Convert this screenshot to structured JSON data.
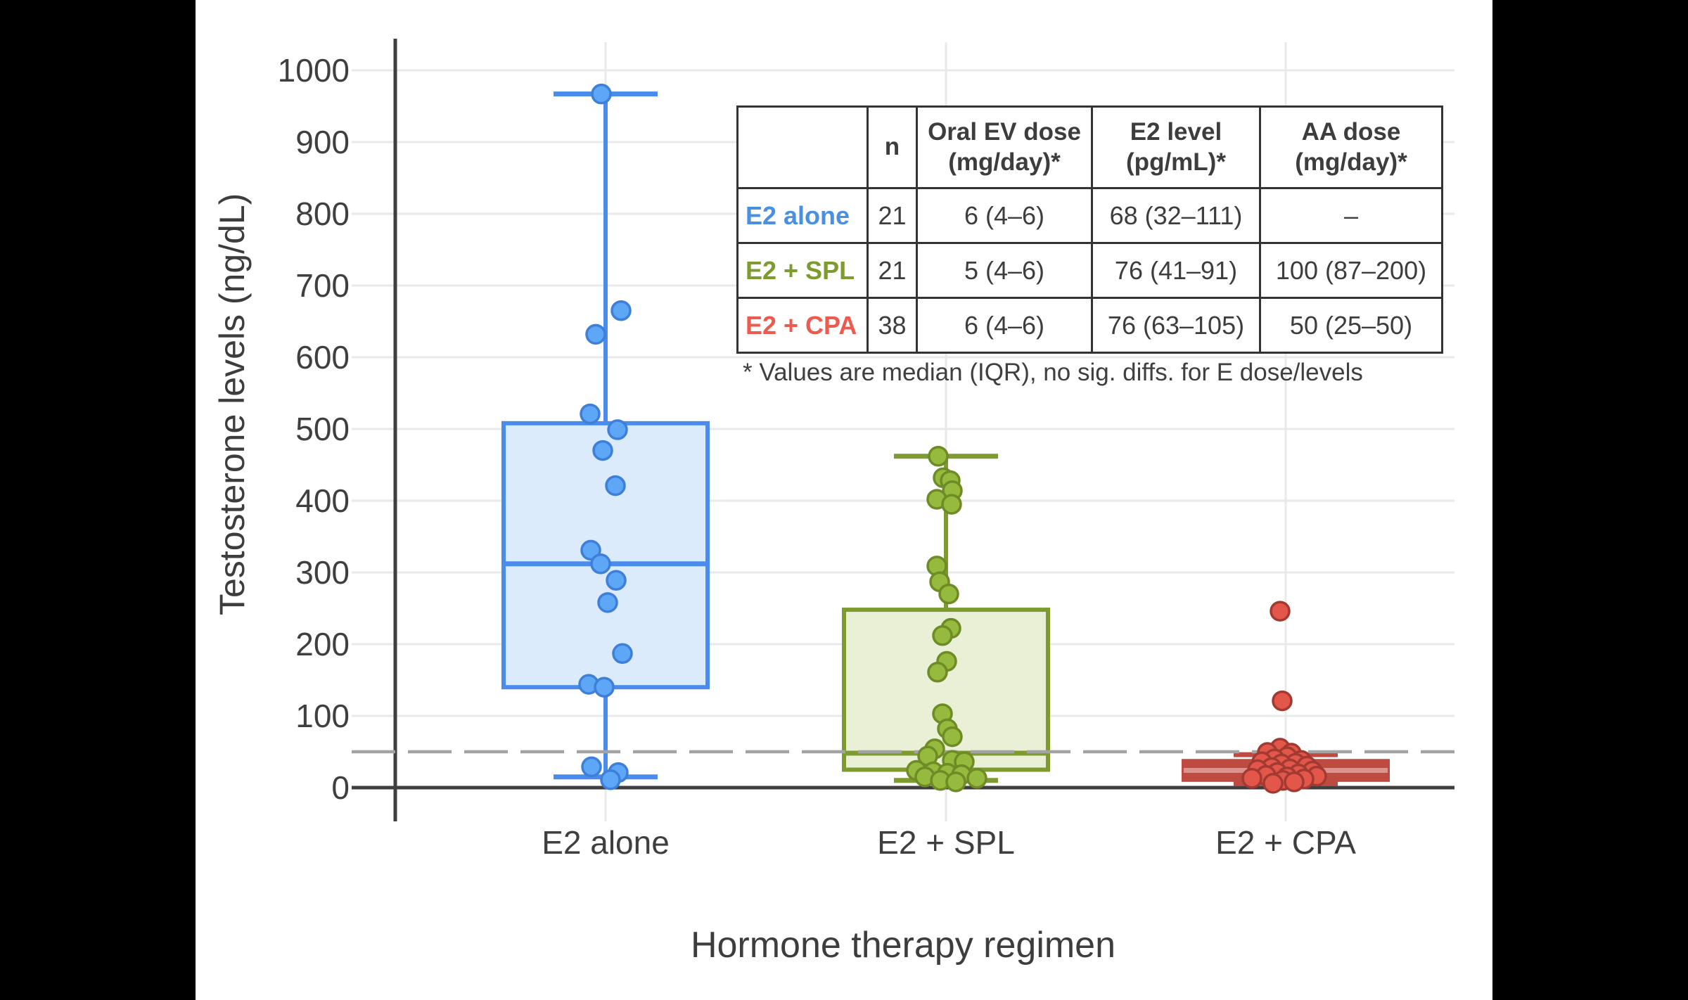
{
  "figure": {
    "x_axis_title": "Hormone therapy regimen",
    "y_axis_title": "Testosterone levels (ng/dL)"
  },
  "colors": {
    "blue": {
      "label": "#4a90e2",
      "stroke": "#4a8cee",
      "fill": "#dcebfb",
      "point": "#5ea6f6",
      "point_stroke": "#3d7fd9",
      "median": "#4a8cee"
    },
    "green": {
      "label": "#7d9b2f",
      "stroke": "#7d9b31",
      "fill": "#eaf0d6",
      "point": "#96ba3e",
      "point_stroke": "#6e8b26",
      "median": "#7d9b31"
    },
    "red": {
      "label": "#ef5a4e",
      "stroke": "#bf4a40",
      "fill": "#bf4a40",
      "point": "#e2574a",
      "point_stroke": "#a23a31",
      "median": "#dd938b"
    },
    "grid": "#e9e9e9",
    "axis": "#3f3f3f",
    "text": "#3d3d3d",
    "dashed_line": "#a3a3a3",
    "table_border": "#333333",
    "background": "#ffffff",
    "letterbox": "#000000"
  },
  "chart_data": {
    "type": "boxplot",
    "xlabel": "Hormone therapy regimen",
    "ylabel": "Testosterone levels (ng/dL)",
    "ylim": [
      0,
      1050
    ],
    "y_ticks": [
      0,
      100,
      200,
      300,
      400,
      500,
      600,
      700,
      800,
      900,
      1000
    ],
    "grid": true,
    "reference_line": {
      "value": 50,
      "style": "dashed"
    },
    "groups": [
      {
        "label": "E2 alone",
        "color_key": "blue",
        "box": {
          "whisker_low": 15,
          "q1": 140,
          "median": 312,
          "q3": 508,
          "whisker_high": 967
        },
        "points": [
          [
            967,
            -6
          ],
          [
            665,
            22
          ],
          [
            632,
            -14
          ],
          [
            521,
            -22
          ],
          [
            499,
            17
          ],
          [
            470,
            -4
          ],
          [
            421,
            14
          ],
          [
            331,
            -21
          ],
          [
            312,
            -7
          ],
          [
            289,
            15
          ],
          [
            258,
            3
          ],
          [
            187,
            24
          ],
          [
            144,
            -24
          ],
          [
            140,
            -2
          ],
          [
            29,
            -20
          ],
          [
            21,
            18
          ],
          [
            11,
            7
          ]
        ]
      },
      {
        "label": "E2 + SPL",
        "color_key": "green",
        "box": {
          "whisker_low": 10,
          "q1": 25,
          "median": 48,
          "q3": 248,
          "whisker_high": 462
        },
        "points": [
          [
            462,
            -11
          ],
          [
            432,
            -4
          ],
          [
            428,
            6
          ],
          [
            414,
            9
          ],
          [
            402,
            -13
          ],
          [
            395,
            8
          ],
          [
            309,
            -13
          ],
          [
            287,
            -9
          ],
          [
            270,
            4
          ],
          [
            222,
            7
          ],
          [
            212,
            -5
          ],
          [
            176,
            1
          ],
          [
            161,
            -12
          ],
          [
            103,
            -5
          ],
          [
            82,
            2
          ],
          [
            71,
            9
          ],
          [
            54,
            -16
          ],
          [
            44,
            -26
          ],
          [
            38,
            9
          ],
          [
            36,
            26
          ],
          [
            24,
            -42
          ],
          [
            22,
            -18
          ],
          [
            20,
            2
          ],
          [
            18,
            22
          ],
          [
            15,
            -30
          ],
          [
            13,
            44
          ],
          [
            10,
            -8
          ],
          [
            8,
            14
          ]
        ]
      },
      {
        "label": "E2 + CPA",
        "color_key": "red",
        "box": {
          "whisker_low": 6,
          "q1": 11,
          "median": 24,
          "q3": 37,
          "whisker_high": 46
        },
        "points": [
          [
            246,
            -8
          ],
          [
            121,
            -5
          ],
          [
            55,
            -8
          ],
          [
            49,
            -26
          ],
          [
            48,
            8
          ],
          [
            43,
            2
          ],
          [
            40,
            -16
          ],
          [
            38,
            22
          ],
          [
            36,
            -34
          ],
          [
            34,
            14
          ],
          [
            33,
            -6
          ],
          [
            30,
            30
          ],
          [
            28,
            -20
          ],
          [
            26,
            6
          ],
          [
            25,
            -40
          ],
          [
            23,
            38
          ],
          [
            21,
            -12
          ],
          [
            19,
            18
          ],
          [
            17,
            -28
          ],
          [
            16,
            44
          ],
          [
            15,
            2
          ],
          [
            13,
            -48
          ],
          [
            12,
            26
          ],
          [
            10,
            -4
          ],
          [
            8,
            12
          ],
          [
            6,
            -18
          ]
        ]
      }
    ]
  },
  "table": {
    "columns": [
      "",
      "n",
      "Oral EV dose (mg/day)*",
      "E2 level (pg/mL)*",
      "AA dose (mg/day)*"
    ],
    "rows": [
      {
        "label": "E2 alone",
        "color_key": "blue",
        "n": "21",
        "ev_dose": "6 (4–6)",
        "e2_level": "68 (32–111)",
        "aa_dose": "–"
      },
      {
        "label": "E2 + SPL",
        "color_key": "green",
        "n": "21",
        "ev_dose": "5 (4–6)",
        "e2_level": "76 (41–91)",
        "aa_dose": "100 (87–200)"
      },
      {
        "label": "E2 + CPA",
        "color_key": "red",
        "n": "38",
        "ev_dose": "6 (4–6)",
        "e2_level": "76 (63–105)",
        "aa_dose": "50 (25–50)"
      }
    ],
    "footnote": "* Values are median (IQR), no sig. diffs. for E dose/levels"
  }
}
